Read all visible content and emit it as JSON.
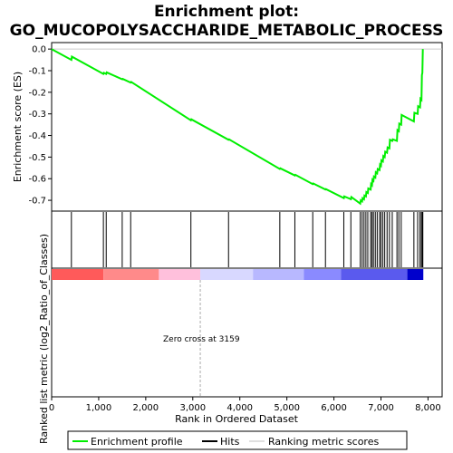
{
  "chart_data": {
    "type": "line",
    "title_line1": "Enrichment plot:",
    "title_line2": "GO_MUCOPOLYSACCHARIDE_METABOLIC_PROCESS",
    "ylabel_top": "Enrichment score (ES)",
    "ylabel_bottom": "Ranked list metric (log2_Ratio_of_Classes)",
    "xlabel": "Rank in Ordered Dataset",
    "xlim": [
      0,
      8300
    ],
    "ylim": [
      -0.75,
      0.03
    ],
    "x_ticks": [
      0,
      1000,
      2000,
      3000,
      4000,
      5000,
      6000,
      7000,
      8000
    ],
    "x_tick_labels": [
      "0",
      "1,000",
      "2,000",
      "3,000",
      "4,000",
      "5,000",
      "6,000",
      "7,000",
      "8,000"
    ],
    "y_ticks": [
      0.0,
      -0.1,
      -0.2,
      -0.3,
      -0.4,
      -0.5,
      -0.6,
      -0.7
    ],
    "y_tick_labels": [
      "0.0",
      "-0.1",
      "-0.2",
      "-0.3",
      "-0.4",
      "-0.5",
      "-0.6",
      "-0.7"
    ],
    "zero_cross_rank": 3159,
    "zero_cross_label": "Zero cross at 3159",
    "es_curve": {
      "name": "Enrichment profile",
      "color": "#00ee00",
      "x": [
        0,
        420,
        430,
        1100,
        1110,
        1160,
        1170,
        1500,
        1510,
        1680,
        1690,
        2960,
        2970,
        3760,
        3770,
        4850,
        4860,
        5170,
        5180,
        5550,
        5560,
        5820,
        5830,
        6210,
        6220,
        6360,
        6370,
        6560,
        6570,
        6600,
        6610,
        6640,
        6650,
        6680,
        6690,
        6720,
        6730,
        6780,
        6790,
        6810,
        6820,
        6840,
        6850,
        6880,
        6890,
        6920,
        6930,
        6970,
        6980,
        7000,
        7010,
        7040,
        7050,
        7080,
        7090,
        7130,
        7140,
        7180,
        7190,
        7240,
        7250,
        7340,
        7350,
        7380,
        7390,
        7430,
        7440,
        7700,
        7710,
        7780,
        7790,
        7830,
        7840,
        7860,
        7870,
        7880,
        7890
      ],
      "y": [
        0.0,
        -0.05,
        -0.035,
        -0.115,
        -0.11,
        -0.115,
        -0.108,
        -0.14,
        -0.138,
        -0.155,
        -0.152,
        -0.33,
        -0.325,
        -0.42,
        -0.418,
        -0.555,
        -0.552,
        -0.585,
        -0.582,
        -0.625,
        -0.622,
        -0.65,
        -0.648,
        -0.69,
        -0.682,
        -0.695,
        -0.685,
        -0.715,
        -0.7,
        -0.705,
        -0.69,
        -0.695,
        -0.678,
        -0.682,
        -0.662,
        -0.666,
        -0.645,
        -0.65,
        -0.625,
        -0.63,
        -0.605,
        -0.61,
        -0.59,
        -0.595,
        -0.57,
        -0.575,
        -0.555,
        -0.56,
        -0.535,
        -0.54,
        -0.515,
        -0.52,
        -0.495,
        -0.5,
        -0.475,
        -0.48,
        -0.455,
        -0.46,
        -0.42,
        -0.425,
        -0.418,
        -0.425,
        -0.375,
        -0.38,
        -0.345,
        -0.35,
        -0.305,
        -0.335,
        -0.295,
        -0.3,
        -0.265,
        -0.27,
        -0.23,
        -0.235,
        -0.12,
        -0.11,
        0.0
      ]
    },
    "hits": {
      "name": "Hits",
      "color": "#000000",
      "ranks": [
        420,
        1100,
        1160,
        1500,
        1680,
        2960,
        3760,
        4850,
        5170,
        5550,
        5820,
        6210,
        6360,
        6560,
        6600,
        6640,
        6680,
        6720,
        6780,
        6810,
        6840,
        6880,
        6920,
        6970,
        7000,
        7040,
        7080,
        7130,
        7180,
        7240,
        7340,
        7380,
        7430,
        7700,
        7780,
        7830,
        7860,
        7880,
        7890
      ]
    },
    "ranking_metric": {
      "name": "Ranking metric scores",
      "color": "#c0c0c0",
      "bands": [
        {
          "from": 0,
          "to": 1100,
          "color": "#ff5a5a"
        },
        {
          "from": 1100,
          "to": 2280,
          "color": "#ff8a8a"
        },
        {
          "from": 2280,
          "to": 3159,
          "color": "#ffc0dc"
        },
        {
          "from": 3159,
          "to": 4280,
          "color": "#d8d8ff"
        },
        {
          "from": 4280,
          "to": 5360,
          "color": "#b8b8ff"
        },
        {
          "from": 5360,
          "to": 6150,
          "color": "#8a8aff"
        },
        {
          "from": 6150,
          "to": 7560,
          "color": "#5a5aee"
        },
        {
          "from": 7560,
          "to": 7900,
          "color": "#0000cc"
        }
      ]
    },
    "legend": {
      "placement": "bottom",
      "items": [
        {
          "label": "Enrichment profile",
          "color": "#00ee00"
        },
        {
          "label": "Hits",
          "color": "#000000"
        },
        {
          "label": "Ranking metric scores",
          "color": "#c0c0c0"
        }
      ]
    }
  }
}
